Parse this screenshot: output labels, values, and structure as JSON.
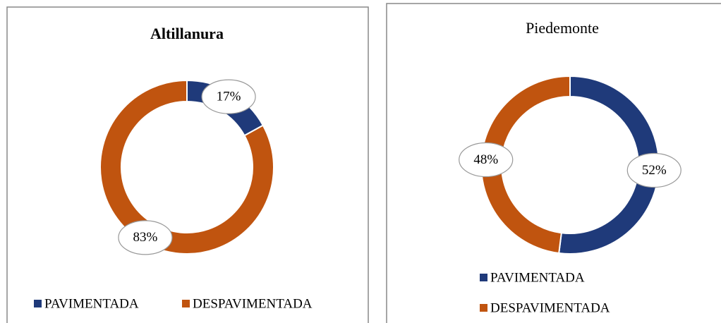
{
  "chart_data": [
    {
      "type": "donut",
      "title": "Altillanura",
      "categories": [
        "PAVIMENTADA",
        "DESPAVIMENTADA"
      ],
      "values": [
        17,
        83
      ],
      "value_labels": [
        "17%",
        "83%"
      ],
      "colors": [
        "#1f3a7a",
        "#c0540f"
      ],
      "legend": "bottom"
    },
    {
      "type": "donut",
      "title": "Piedemonte",
      "categories": [
        "PAVIMENTADA",
        "DESPAVIMENTADA"
      ],
      "values": [
        52,
        48
      ],
      "value_labels": [
        "52%",
        "48%"
      ],
      "colors": [
        "#1f3a7a",
        "#c0540f"
      ],
      "legend": "bottom"
    }
  ]
}
